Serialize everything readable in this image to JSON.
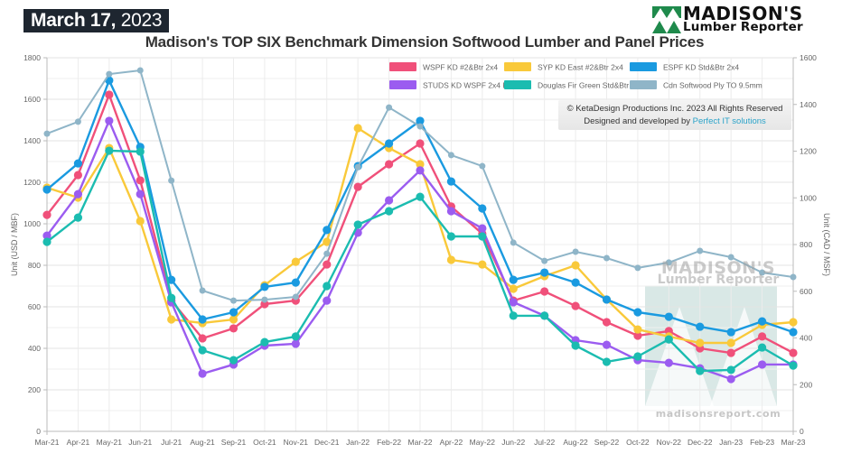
{
  "header": {
    "date_bold": "March 17,",
    "date_year": " 2023",
    "logo_name": "MADISON'S",
    "logo_sub": "Lumber Reporter"
  },
  "credit": {
    "line1": "© KetaDesign Productions Inc. 2023 All Rights Reserved",
    "line2_prefix": "Designed and developed by ",
    "line2_link": "Perfect IT solutions"
  },
  "watermark": {
    "name": "MADISON'S",
    "sub": "Lumber Reporter",
    "url": "madisonsreport.com"
  },
  "chart_data": {
    "type": "line",
    "title": "Madison's TOP SIX Benchmark Dimension Softwood Lumber and Panel Prices",
    "xlabel": "",
    "ylabel": "Unit (USD / MBF)",
    "y2label": "Unit (CAD / MSF)",
    "ylim": [
      0,
      1800
    ],
    "y2lim": [
      0,
      1600
    ],
    "yticks": [
      0,
      200,
      400,
      600,
      800,
      1000,
      1200,
      1400,
      1600,
      1800
    ],
    "y2ticks": [
      0,
      200,
      400,
      600,
      800,
      1000,
      1200,
      1400,
      1600
    ],
    "grid": true,
    "legend_position": "top-right",
    "categories": [
      "Mar-21",
      "Apr-21",
      "May-21",
      "Jun-21",
      "Jul-21",
      "Aug-21",
      "Sep-21",
      "Oct-21",
      "Nov-21",
      "Dec-21",
      "Jan-22",
      "Feb-22",
      "Mar-22",
      "Apr-22",
      "May-22",
      "Jun-22",
      "Jul-22",
      "Aug-22",
      "Sep-22",
      "Oct-22",
      "Nov-22",
      "Dec-22",
      "Jan-23",
      "Feb-23",
      "Mar-23"
    ],
    "series": [
      {
        "name": "WSPF KD #2&Btr 2x4",
        "color": "#f0507a",
        "axis": "left",
        "values": [
          1043,
          1235,
          1622,
          1209,
          630,
          448,
          496,
          613,
          630,
          804,
          1178,
          1287,
          1387,
          1083,
          952,
          630,
          674,
          604,
          526,
          461,
          483,
          400,
          378,
          457,
          378
        ]
      },
      {
        "name": "SYP KD East #2&Btr 2x4",
        "color": "#f9c93a",
        "axis": "left",
        "values": [
          1174,
          1126,
          1365,
          1013,
          539,
          522,
          539,
          704,
          817,
          913,
          1461,
          1365,
          1287,
          826,
          804,
          687,
          748,
          800,
          635,
          491,
          457,
          426,
          426,
          513,
          526
        ]
      },
      {
        "name": "ESPF KD Std&Btr 2x4",
        "color": "#1a9ae0",
        "axis": "left",
        "values": [
          1165,
          1291,
          1691,
          1370,
          730,
          539,
          574,
          696,
          717,
          970,
          1278,
          1387,
          1496,
          1204,
          1074,
          730,
          765,
          717,
          635,
          574,
          552,
          504,
          478,
          530,
          478
        ]
      },
      {
        "name": "STUDS KD WSPF 2x4 PET",
        "color": "#9b5cf0",
        "axis": "left",
        "values": [
          943,
          1143,
          1496,
          1143,
          622,
          278,
          322,
          413,
          422,
          630,
          957,
          1113,
          1257,
          1061,
          978,
          622,
          557,
          439,
          417,
          343,
          330,
          304,
          252,
          322,
          322
        ]
      },
      {
        "name": "Douglas Fir Green Std&Btr 2x4",
        "color": "#1bbcb0",
        "axis": "left",
        "values": [
          913,
          1030,
          1352,
          1348,
          643,
          391,
          343,
          430,
          457,
          700,
          996,
          1061,
          1130,
          939,
          939,
          557,
          557,
          413,
          335,
          361,
          443,
          291,
          296,
          404,
          317
        ]
      },
      {
        "name": "Cdn Softwood Ply TO 9.5mm",
        "color": "#8fb5c8",
        "axis": "right",
        "values": [
          1275,
          1326,
          1530,
          1546,
          1074,
          603,
          560,
          564,
          576,
          761,
          1132,
          1387,
          1306,
          1183,
          1136,
          808,
          730,
          769,
          742,
          700,
          723,
          773,
          746,
          680,
          661
        ]
      }
    ]
  }
}
